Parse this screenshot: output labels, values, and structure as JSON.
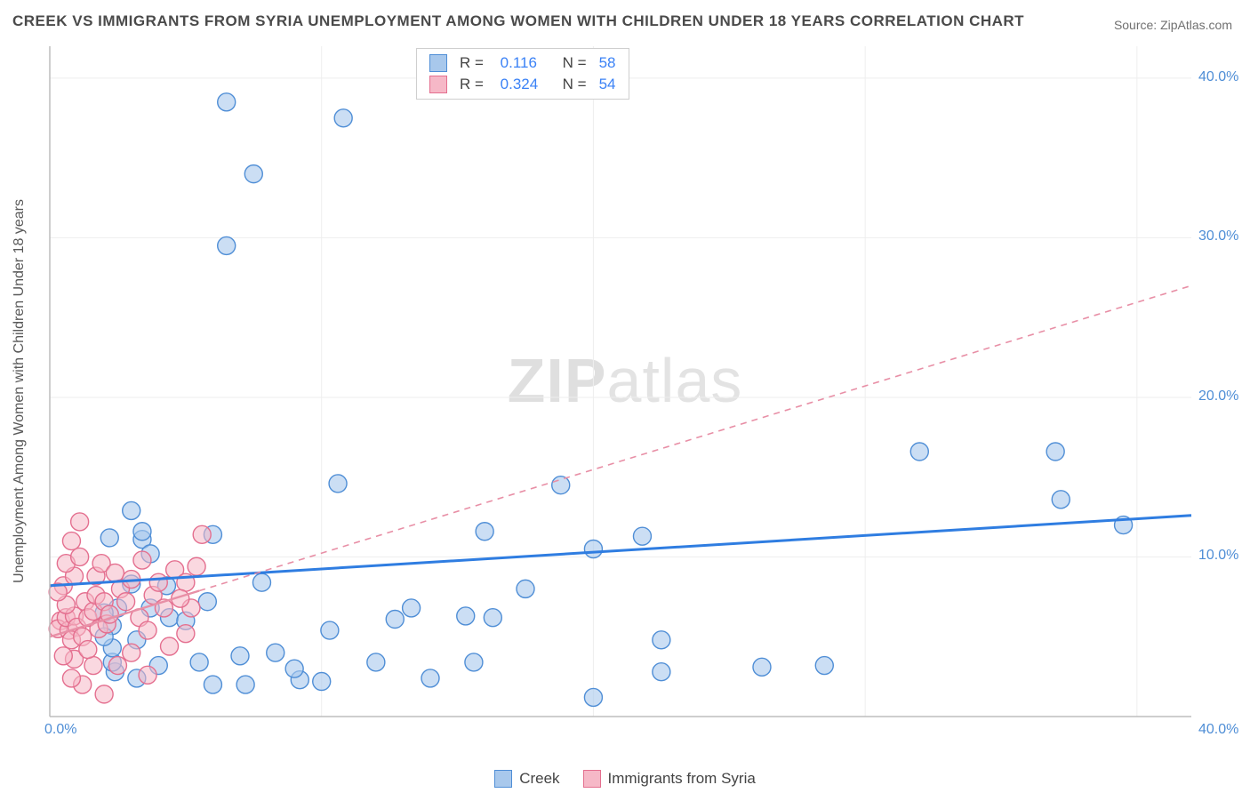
{
  "title": "CREEK VS IMMIGRANTS FROM SYRIA UNEMPLOYMENT AMONG WOMEN WITH CHILDREN UNDER 18 YEARS CORRELATION CHART",
  "source": "Source: ZipAtlas.com",
  "ylabel": "Unemployment Among Women with Children Under 18 years",
  "watermark_html": "<b>ZIP</b><span class='thin'>atlas</span>",
  "plot": {
    "type": "scatter",
    "xlim": [
      0,
      42
    ],
    "ylim": [
      0,
      42
    ],
    "xticks": [
      {
        "v": 0,
        "label": "0.0%"
      },
      {
        "v": 40,
        "label": "40.0%"
      }
    ],
    "yticks": [
      {
        "v": 10,
        "label": "10.0%"
      },
      {
        "v": 20,
        "label": "20.0%"
      },
      {
        "v": 30,
        "label": "30.0%"
      },
      {
        "v": 40,
        "label": "40.0%"
      }
    ],
    "grid_color": "#eeeeee",
    "axis_color": "#bdbdbd",
    "marker_radius": 10,
    "marker_stroke_width": 1.4,
    "series": [
      {
        "name": "Creek",
        "fill": "#a8c8ec",
        "stroke": "#4f8ed6",
        "fill_opacity": 0.6,
        "points": [
          [
            6.5,
            38.5
          ],
          [
            10.8,
            37.5
          ],
          [
            7.5,
            34.0
          ],
          [
            6.5,
            29.5
          ],
          [
            32.0,
            16.6
          ],
          [
            37.0,
            16.6
          ],
          [
            39.5,
            12.0
          ],
          [
            37.2,
            13.6
          ],
          [
            10.6,
            14.6
          ],
          [
            16.0,
            11.6
          ],
          [
            18.8,
            14.5
          ],
          [
            16.3,
            6.2
          ],
          [
            15.6,
            3.4
          ],
          [
            12.0,
            3.4
          ],
          [
            10.0,
            2.2
          ],
          [
            14.0,
            2.4
          ],
          [
            5.5,
            3.4
          ],
          [
            7.0,
            3.8
          ],
          [
            6.0,
            2.0
          ],
          [
            3.2,
            2.4
          ],
          [
            2.4,
            2.8
          ],
          [
            2.3,
            3.4
          ],
          [
            2.3,
            5.7
          ],
          [
            3.0,
            8.3
          ],
          [
            2.2,
            11.2
          ],
          [
            3.4,
            11.1
          ],
          [
            3.7,
            10.2
          ],
          [
            3.4,
            11.6
          ],
          [
            3.0,
            12.9
          ],
          [
            2.5,
            6.8
          ],
          [
            3.7,
            6.8
          ],
          [
            4.3,
            8.2
          ],
          [
            7.8,
            8.4
          ],
          [
            8.3,
            4.0
          ],
          [
            9.2,
            2.3
          ],
          [
            4.0,
            3.2
          ],
          [
            12.7,
            6.1
          ],
          [
            13.3,
            6.8
          ],
          [
            15.3,
            6.3
          ],
          [
            7.2,
            2.0
          ],
          [
            9.0,
            3.0
          ],
          [
            21.8,
            11.3
          ],
          [
            20.0,
            10.5
          ],
          [
            2.3,
            4.3
          ],
          [
            3.2,
            4.8
          ],
          [
            2.0,
            6.5
          ],
          [
            4.4,
            6.2
          ],
          [
            5.0,
            6.0
          ],
          [
            5.8,
            7.2
          ],
          [
            2.0,
            5.0
          ],
          [
            20.0,
            1.2
          ],
          [
            22.5,
            4.8
          ],
          [
            22.5,
            2.8
          ],
          [
            28.5,
            3.2
          ],
          [
            6.0,
            11.4
          ],
          [
            10.3,
            5.4
          ],
          [
            26.2,
            3.1
          ],
          [
            17.5,
            8.0
          ]
        ],
        "trend": {
          "y0": 8.2,
          "y1": 12.6,
          "stroke": "#2f7de1",
          "width": 3,
          "dash": null
        }
      },
      {
        "name": "Immigrants from Syria",
        "fill": "#f6b8c7",
        "stroke": "#e46f8f",
        "fill_opacity": 0.55,
        "points": [
          [
            0.4,
            6.0
          ],
          [
            0.3,
            5.5
          ],
          [
            0.7,
            5.4
          ],
          [
            0.6,
            6.2
          ],
          [
            0.9,
            6.3
          ],
          [
            1.0,
            5.6
          ],
          [
            0.8,
            4.8
          ],
          [
            0.6,
            7.0
          ],
          [
            1.3,
            7.2
          ],
          [
            1.4,
            6.2
          ],
          [
            1.2,
            5.0
          ],
          [
            1.6,
            6.6
          ],
          [
            1.8,
            5.5
          ],
          [
            1.7,
            7.6
          ],
          [
            2.0,
            7.2
          ],
          [
            2.1,
            5.8
          ],
          [
            0.5,
            8.2
          ],
          [
            0.9,
            8.8
          ],
          [
            0.6,
            9.6
          ],
          [
            0.8,
            11.0
          ],
          [
            1.1,
            10.0
          ],
          [
            1.7,
            8.8
          ],
          [
            1.9,
            9.6
          ],
          [
            2.4,
            9.0
          ],
          [
            2.6,
            8.0
          ],
          [
            3.0,
            8.6
          ],
          [
            2.8,
            7.2
          ],
          [
            3.3,
            6.2
          ],
          [
            3.6,
            5.4
          ],
          [
            3.8,
            7.6
          ],
          [
            4.2,
            6.8
          ],
          [
            4.0,
            8.4
          ],
          [
            4.6,
            9.2
          ],
          [
            5.0,
            8.4
          ],
          [
            5.4,
            9.4
          ],
          [
            5.6,
            11.4
          ],
          [
            5.2,
            6.8
          ],
          [
            5.0,
            5.2
          ],
          [
            4.4,
            4.4
          ],
          [
            3.0,
            4.0
          ],
          [
            2.5,
            3.2
          ],
          [
            3.6,
            2.6
          ],
          [
            2.0,
            1.4
          ],
          [
            1.2,
            2.0
          ],
          [
            1.6,
            3.2
          ],
          [
            0.9,
            3.6
          ],
          [
            0.5,
            3.8
          ],
          [
            0.8,
            2.4
          ],
          [
            1.1,
            12.2
          ],
          [
            0.3,
            7.8
          ],
          [
            1.4,
            4.2
          ],
          [
            4.8,
            7.4
          ],
          [
            2.2,
            6.4
          ],
          [
            3.4,
            9.8
          ]
        ],
        "trend": {
          "y0": 5.0,
          "y1": 27.0,
          "stroke": "#e88fa6",
          "width": 1.6,
          "dash": "7 6"
        }
      }
    ]
  },
  "stats": [
    {
      "swatch_fill": "#a8c8ec",
      "swatch_stroke": "#4f8ed6",
      "r": "0.116",
      "n": "58"
    },
    {
      "swatch_fill": "#f6b8c7",
      "swatch_stroke": "#e46f8f",
      "r": "0.324",
      "n": "54"
    }
  ],
  "legend": [
    {
      "label": "Creek",
      "fill": "#a8c8ec",
      "stroke": "#4f8ed6"
    },
    {
      "label": "Immigrants from Syria",
      "fill": "#f6b8c7",
      "stroke": "#e46f8f"
    }
  ]
}
